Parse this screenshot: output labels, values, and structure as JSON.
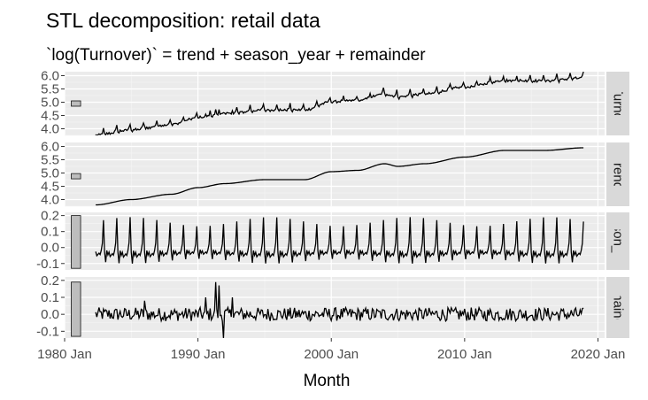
{
  "chart_data": {
    "type": "line",
    "title": "STL decomposition: retail data",
    "subtitle": "`log(Turnover)` = trend + season_year + remainder",
    "xlabel": "Month",
    "x_ticks": [
      "1980 Jan",
      "1990 Jan",
      "2000 Jan",
      "2010 Jan",
      "2020 Jan"
    ],
    "x_range": [
      1980.0,
      2020.5
    ],
    "series_time_range": [
      1982.33,
      2018.92
    ],
    "season_period_years": 1,
    "grid": true,
    "panels": [
      {
        "name": "log(Turnover)",
        "strip_label": "log(Turnover)",
        "ylim": [
          3.75,
          6.15
        ],
        "y_ticks": [
          "4.0",
          "4.5",
          "5.0",
          "5.5",
          "6.0"
        ],
        "y_tick_values": [
          4.0,
          4.5,
          5.0,
          5.5,
          6.0
        ],
        "scale_bar": {
          "lo": 4.85,
          "hi": 5.05
        },
        "trend_nodes": {
          "x": [
            1982.33,
            1985,
            1988,
            1990,
            1992,
            1995,
            1998,
            2000,
            2002,
            2004,
            2005,
            2007,
            2010,
            2013,
            2016,
            2018.92
          ],
          "y": [
            3.8,
            4.0,
            4.2,
            4.45,
            4.6,
            4.75,
            4.75,
            5.05,
            5.1,
            5.35,
            5.25,
            5.35,
            5.6,
            5.85,
            5.85,
            5.95
          ]
        }
      },
      {
        "name": "trend",
        "strip_label": "trend",
        "ylim": [
          3.75,
          6.15
        ],
        "y_ticks": [
          "4.0",
          "4.5",
          "5.0",
          "5.5",
          "6.0"
        ],
        "y_tick_values": [
          4.0,
          4.5,
          5.0,
          5.5,
          6.0
        ],
        "scale_bar": {
          "lo": 4.78,
          "hi": 4.98
        },
        "trend_nodes": {
          "x": [
            1982.33,
            1985,
            1988,
            1990,
            1992,
            1995,
            1998,
            2000,
            2002,
            2004,
            2005,
            2007,
            2010,
            2013,
            2016,
            2018.92
          ],
          "y": [
            3.8,
            4.0,
            4.2,
            4.45,
            4.6,
            4.75,
            4.75,
            5.05,
            5.1,
            5.35,
            5.25,
            5.35,
            5.6,
            5.85,
            5.85,
            5.95
          ]
        }
      },
      {
        "name": "season_year",
        "strip_label": "season_year",
        "ylim": [
          -0.14,
          0.22
        ],
        "y_ticks": [
          "-0.1",
          "0.0",
          "0.1",
          "0.2"
        ],
        "y_tick_values": [
          -0.1,
          0.0,
          0.1,
          0.2
        ],
        "scale_bar": {
          "lo": -0.13,
          "hi": 0.2
        },
        "monthly_pattern": [
          -0.03,
          -0.1,
          -0.02,
          -0.05,
          -0.03,
          -0.06,
          -0.05,
          -0.04,
          -0.05,
          -0.02,
          0.03,
          0.19
        ]
      },
      {
        "name": "remainder",
        "strip_label": "remainder",
        "ylim": [
          -0.14,
          0.22
        ],
        "y_ticks": [
          "-0.1",
          "0.0",
          "0.1",
          "0.2"
        ],
        "y_tick_values": [
          -0.1,
          0.0,
          0.1,
          0.2
        ],
        "scale_bar": {
          "lo": -0.13,
          "hi": 0.19
        },
        "amplitude_typical": 0.04,
        "notable_values": {
          "x": [
            1986.0,
            1990.6,
            1991.3,
            1991.6,
            1991.9,
            1992.6
          ],
          "y": [
            0.08,
            0.1,
            0.19,
            0.17,
            -0.14,
            0.1
          ]
        }
      }
    ]
  }
}
